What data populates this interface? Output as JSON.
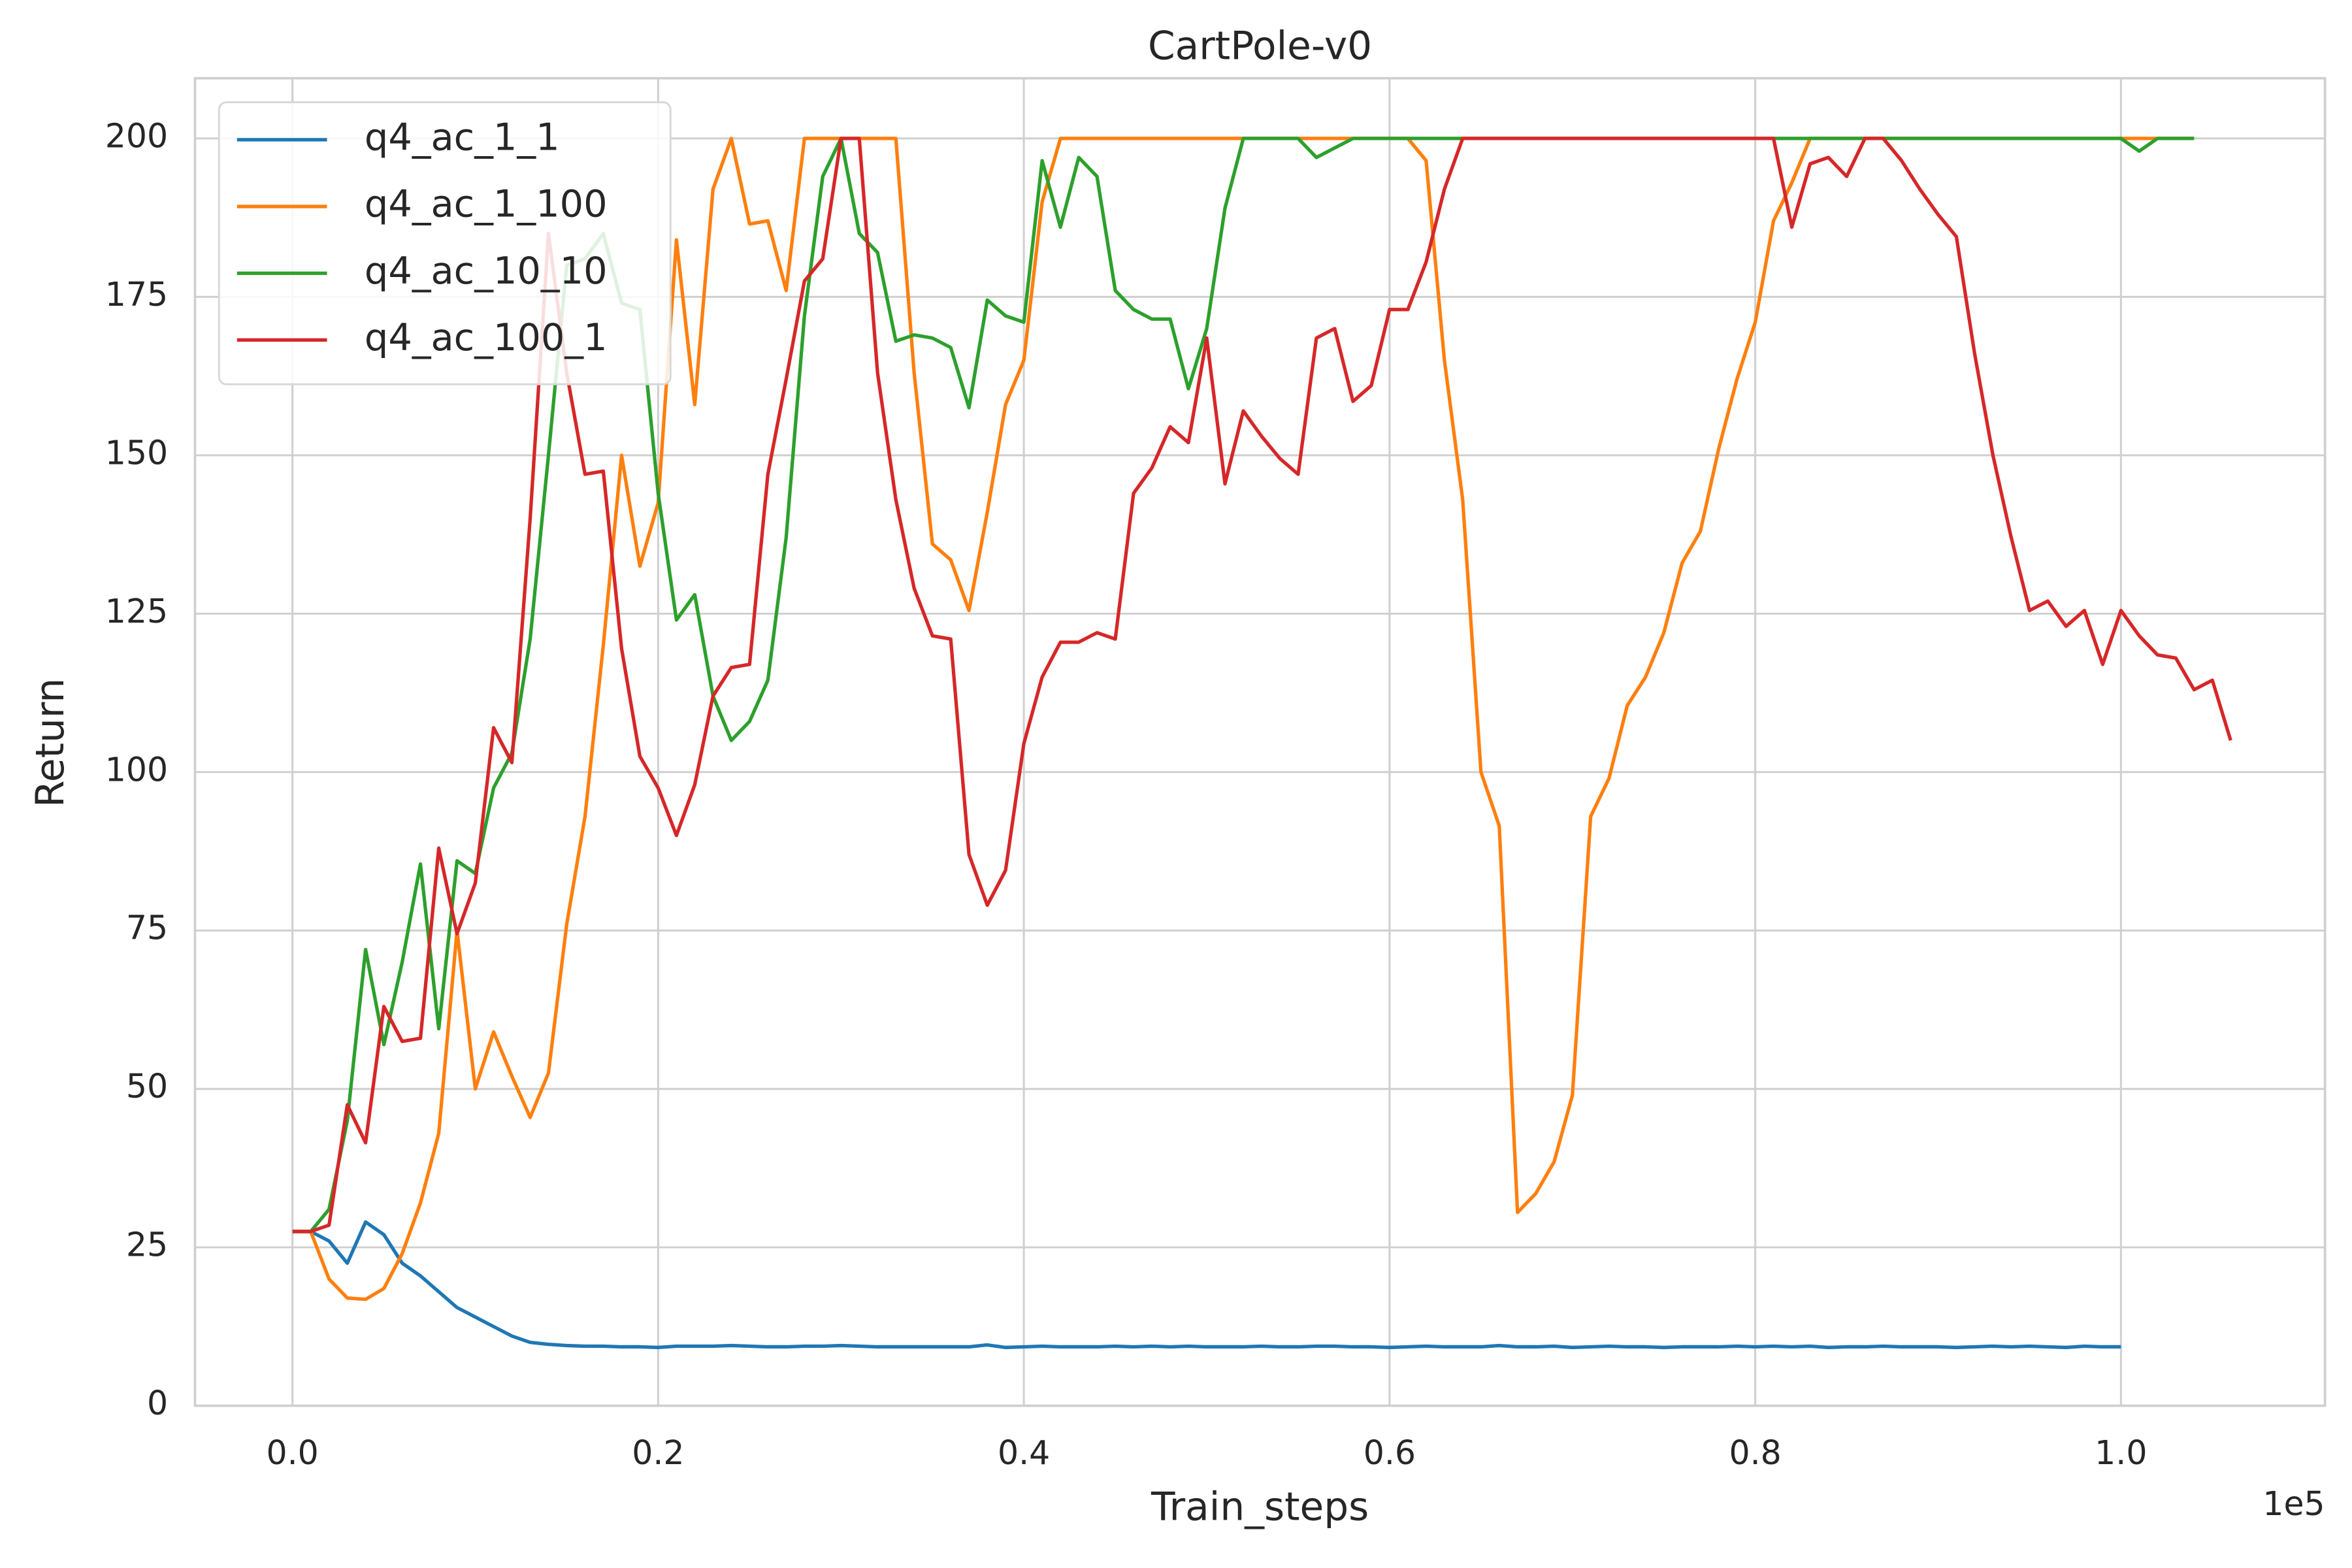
{
  "chart_data": {
    "type": "line",
    "title": "CartPole-v0",
    "x_label": "Train_steps",
    "y_label": "Return",
    "x_offset_label": "1e5",
    "x": [
      0,
      0.01,
      0.02,
      0.03,
      0.04,
      0.05,
      0.06,
      0.07,
      0.08,
      0.09,
      0.1,
      0.11,
      0.12,
      0.13,
      0.14,
      0.15,
      0.16,
      0.17,
      0.18,
      0.19,
      0.2,
      0.21,
      0.22,
      0.23,
      0.24,
      0.25,
      0.26,
      0.27,
      0.28,
      0.29,
      0.3,
      0.31,
      0.32,
      0.33,
      0.34,
      0.35,
      0.36,
      0.37,
      0.38,
      0.39,
      0.4,
      0.41,
      0.42,
      0.43,
      0.44,
      0.45,
      0.46,
      0.47,
      0.48,
      0.49,
      0.5,
      0.51,
      0.52,
      0.53,
      0.54,
      0.55,
      0.56,
      0.57,
      0.58,
      0.59,
      0.6,
      0.61,
      0.62,
      0.63,
      0.64,
      0.65,
      0.66,
      0.67,
      0.68,
      0.69,
      0.7,
      0.71,
      0.72,
      0.73,
      0.74,
      0.75,
      0.76,
      0.77,
      0.78,
      0.79,
      0.8,
      0.81,
      0.82,
      0.83,
      0.84,
      0.85,
      0.86,
      0.87,
      0.88,
      0.89,
      0.9,
      0.91,
      0.92,
      0.93,
      0.94,
      0.95,
      0.96,
      0.97,
      0.98,
      0.99,
      1,
      1.01,
      1.02,
      1.03,
      1.04,
      1.05,
      1.06
    ],
    "series": [
      {
        "name": "q4_ac_1_1",
        "color": "#1f77b4",
        "values": [
          27.5,
          27.5,
          26,
          22.5,
          29,
          27,
          22.5,
          20.5,
          18,
          15.5,
          14,
          12.5,
          11,
          10,
          9.7,
          9.5,
          9.4,
          9.4,
          9.3,
          9.3,
          9.2,
          9.4,
          9.4,
          9.4,
          9.5,
          9.4,
          9.3,
          9.3,
          9.4,
          9.4,
          9.5,
          9.4,
          9.3,
          9.3,
          9.3,
          9.3,
          9.3,
          9.3,
          9.6,
          9.2,
          9.3,
          9.4,
          9.3,
          9.3,
          9.3,
          9.4,
          9.3,
          9.4,
          9.3,
          9.4,
          9.3,
          9.3,
          9.3,
          9.4,
          9.3,
          9.3,
          9.4,
          9.4,
          9.3,
          9.3,
          9.2,
          9.3,
          9.4,
          9.3,
          9.3,
          9.3,
          9.5,
          9.3,
          9.3,
          9.4,
          9.2,
          9.3,
          9.4,
          9.3,
          9.3,
          9.2,
          9.3,
          9.3,
          9.3,
          9.4,
          9.3,
          9.4,
          9.3,
          9.4,
          9.2,
          9.3,
          9.3,
          9.4,
          9.3,
          9.3,
          9.3,
          9.2,
          9.3,
          9.4,
          9.3,
          9.4,
          9.3,
          9.2,
          9.4,
          9.3,
          9.3,
          null,
          null,
          null,
          null,
          null,
          null
        ]
      },
      {
        "name": "q4_ac_1_100",
        "color": "#ff7f0e",
        "values": [
          27.5,
          27.5,
          20,
          17,
          16.8,
          18.5,
          24,
          32,
          43,
          75,
          50,
          59,
          52,
          45.5,
          52.5,
          76,
          93,
          120,
          150,
          132.5,
          142.5,
          184,
          158,
          192,
          200,
          186.5,
          187,
          176,
          200,
          200,
          200,
          200,
          200,
          200,
          163,
          136,
          133.5,
          125.5,
          141,
          158,
          165,
          190,
          200,
          200,
          200,
          200,
          200,
          200,
          200,
          200,
          200,
          200,
          200,
          200,
          200,
          200,
          200,
          200,
          200,
          200,
          200,
          200,
          196.5,
          165,
          143,
          100,
          91.5,
          30.5,
          33.5,
          38.5,
          49,
          93,
          99,
          110.5,
          115,
          122,
          133,
          138,
          151,
          162,
          171,
          187,
          193,
          200,
          200,
          200,
          200,
          200,
          200,
          200,
          200,
          200,
          200,
          200,
          200,
          200,
          200,
          200,
          200,
          200,
          200,
          200,
          200,
          200,
          200,
          null,
          null
        ]
      },
      {
        "name": "q4_ac_10_10",
        "color": "#2ca02c",
        "values": [
          27.5,
          27.5,
          31,
          45,
          72,
          57,
          70,
          85.5,
          59.5,
          86,
          84,
          97.5,
          103,
          121,
          150,
          180,
          181,
          185,
          174,
          173,
          144,
          124,
          128,
          112,
          105,
          108,
          114.5,
          137,
          172,
          194,
          200,
          185,
          182,
          168,
          169,
          168.5,
          167,
          157.5,
          174.5,
          172,
          171,
          196.5,
          186,
          197,
          194,
          176,
          173,
          171.5,
          171.5,
          160.5,
          170,
          189,
          200,
          200,
          200,
          200,
          197,
          198.5,
          200,
          200,
          200,
          200,
          200,
          200,
          200,
          200,
          200,
          200,
          200,
          200,
          200,
          200,
          200,
          200,
          200,
          200,
          200,
          200,
          200,
          200,
          200,
          200,
          200,
          200,
          200,
          200,
          200,
          200,
          200,
          200,
          200,
          200,
          200,
          200,
          200,
          200,
          200,
          200,
          200,
          200,
          200,
          198,
          200,
          200,
          200,
          null,
          null
        ]
      },
      {
        "name": "q4_ac_100_1",
        "color": "#d62728",
        "values": [
          27.5,
          27.5,
          28.5,
          47.5,
          41.5,
          63,
          57.5,
          58,
          88,
          74.5,
          82.5,
          107,
          101.5,
          140,
          185,
          163,
          147,
          147.5,
          119.5,
          102.5,
          97.5,
          90,
          98,
          112,
          116.5,
          117,
          147,
          162,
          177.5,
          181,
          200,
          200,
          163,
          143,
          129,
          121.5,
          121,
          87,
          79,
          84.5,
          104.5,
          115,
          120.5,
          120.5,
          122,
          121,
          144,
          148,
          154.5,
          152,
          168.5,
          145.5,
          157,
          153,
          149.5,
          147,
          168.5,
          170,
          158.5,
          161,
          173,
          173,
          180.5,
          192,
          200,
          200,
          200,
          200,
          200,
          200,
          200,
          200,
          200,
          200,
          200,
          200,
          200,
          200,
          200,
          200,
          200,
          200,
          186,
          196,
          197,
          194,
          200,
          200,
          196.5,
          192,
          188,
          184.5,
          166,
          150,
          137,
          125.5,
          127,
          123,
          125.5,
          117,
          125.5,
          121.5,
          118.5,
          118,
          113,
          114.5,
          105
        ]
      }
    ],
    "xlim": [
      -0.0533,
      1.1116
    ],
    "ylim": [
      0,
      209.5
    ],
    "xticks": [
      {
        "value": 0,
        "label": "0.0"
      },
      0.2,
      0.4,
      0.6,
      0.8,
      {
        "value": 1,
        "label": "1.0"
      }
    ],
    "yticks": [
      0,
      25,
      50,
      75,
      100,
      125,
      150,
      175,
      200
    ],
    "grid": true,
    "legend": "upper left"
  }
}
